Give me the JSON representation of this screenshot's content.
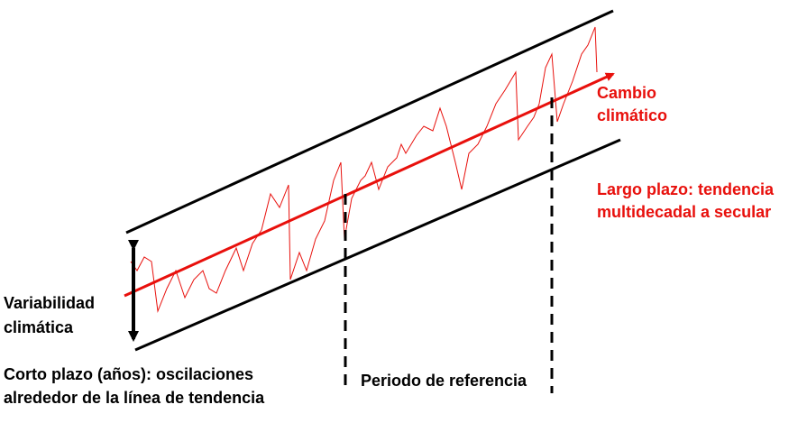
{
  "labels": {
    "cambio": [
      "Cambio",
      "climático"
    ],
    "largo_plazo": [
      "Largo plazo: tendencia",
      "multidecadal a secular"
    ],
    "variabilidad": [
      "Variabilidad",
      "climática"
    ],
    "corto_plazo": [
      "Corto plazo (años): oscilaciones",
      "alrededor de la línea de tendencia"
    ],
    "periodo": "Periodo de referencia"
  }
}
